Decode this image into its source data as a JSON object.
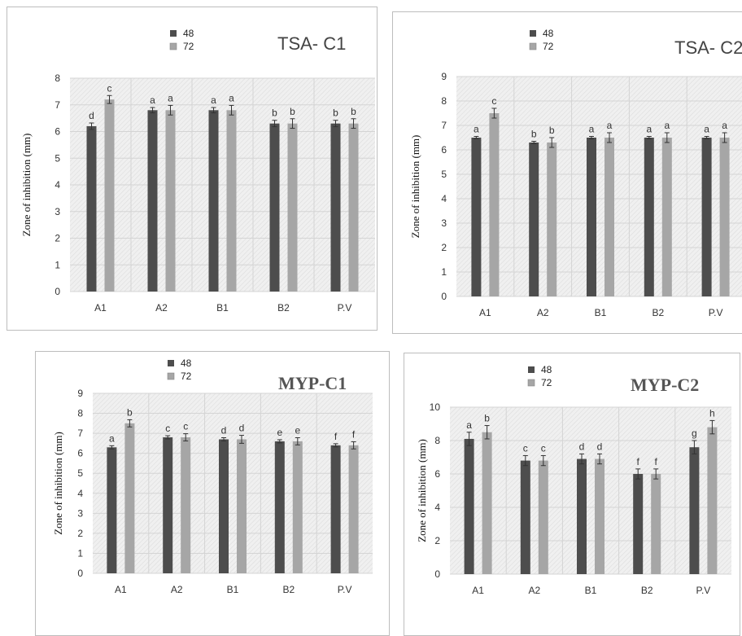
{
  "colors": {
    "series_48": "#4d4d4d",
    "series_72": "#a6a6a6",
    "plot_bg": "#f0f0f0",
    "grid": "#d4d4d4"
  },
  "chart_data": [
    {
      "type": "bar",
      "title": "TSA- C1",
      "ylabel": "Zone of inhibition (mm)",
      "categories": [
        "A1",
        "A2",
        "B1",
        "B2",
        "P.V"
      ],
      "ylim": [
        0,
        8
      ],
      "yticks": [
        "0",
        "1",
        "2",
        "3",
        "4",
        "5",
        "6",
        "7",
        "8"
      ],
      "grid": true,
      "legend": "top-center",
      "series": [
        {
          "name": "48",
          "values": [
            6.2,
            6.8,
            6.8,
            6.3,
            6.3
          ],
          "errors": [
            0.12,
            0.1,
            0.1,
            0.12,
            0.12
          ],
          "labels": [
            "d",
            "a",
            "a",
            "b",
            "b"
          ]
        },
        {
          "name": "72",
          "values": [
            7.2,
            6.8,
            6.8,
            6.3,
            6.3
          ],
          "errors": [
            0.15,
            0.18,
            0.18,
            0.18,
            0.18
          ],
          "labels": [
            "c",
            "a",
            "a",
            "b",
            "b"
          ]
        }
      ]
    },
    {
      "type": "bar",
      "title": "TSA- C2",
      "ylabel": "Zone of inhibition (mm)",
      "categories": [
        "A1",
        "A2",
        "B1",
        "B2",
        "P.V"
      ],
      "ylim": [
        0,
        9
      ],
      "yticks": [
        "0",
        "1",
        "2",
        "3",
        "4",
        "5",
        "6",
        "7",
        "8",
        "9"
      ],
      "grid": true,
      "legend": "top-center",
      "series": [
        {
          "name": "48",
          "values": [
            6.5,
            6.3,
            6.5,
            6.5,
            6.5
          ],
          "errors": [
            0.05,
            0.05,
            0.05,
            0.05,
            0.05
          ],
          "labels": [
            "a",
            "b",
            "a",
            "a",
            "a"
          ]
        },
        {
          "name": "72",
          "values": [
            7.5,
            6.3,
            6.5,
            6.5,
            6.5
          ],
          "errors": [
            0.2,
            0.2,
            0.2,
            0.2,
            0.2
          ],
          "labels": [
            "c",
            "b",
            "a",
            "a",
            "a"
          ]
        }
      ]
    },
    {
      "type": "bar",
      "title": "MYP-C1",
      "ylabel": "Zone of inhibition (mm)",
      "categories": [
        "A1",
        "A2",
        "B1",
        "B2",
        "P.V"
      ],
      "ylim": [
        0,
        9
      ],
      "yticks": [
        "0",
        "1",
        "2",
        "3",
        "4",
        "5",
        "6",
        "7",
        "8",
        "9"
      ],
      "grid": true,
      "legend": "top-center",
      "series": [
        {
          "name": "48",
          "values": [
            6.3,
            6.8,
            6.7,
            6.6,
            6.4
          ],
          "errors": [
            0.08,
            0.08,
            0.08,
            0.08,
            0.08
          ],
          "labels": [
            "a",
            "c",
            "d",
            "e",
            "f"
          ]
        },
        {
          "name": "72",
          "values": [
            7.5,
            6.8,
            6.7,
            6.6,
            6.4
          ],
          "errors": [
            0.18,
            0.18,
            0.2,
            0.18,
            0.18
          ],
          "labels": [
            "b",
            "c",
            "d",
            "e",
            "f"
          ]
        }
      ]
    },
    {
      "type": "bar",
      "title": "MYP-C2",
      "ylabel": "Zone of inhibition (mm)",
      "categories": [
        "A1",
        "A2",
        "B1",
        "B2",
        "P.V"
      ],
      "ylim": [
        0,
        10
      ],
      "yticks": [
        "0",
        "2",
        "4",
        "6",
        "8",
        "10"
      ],
      "grid": true,
      "legend": "top-center",
      "series": [
        {
          "name": "48",
          "values": [
            8.1,
            6.8,
            6.9,
            6.0,
            7.6
          ],
          "errors": [
            0.4,
            0.3,
            0.3,
            0.3,
            0.4
          ],
          "labels": [
            "a",
            "c",
            "d",
            "f",
            "g"
          ]
        },
        {
          "name": "72",
          "values": [
            8.5,
            6.8,
            6.9,
            6.0,
            8.8
          ],
          "errors": [
            0.4,
            0.3,
            0.3,
            0.3,
            0.4
          ],
          "labels": [
            "b",
            "c",
            "d",
            "f",
            "h"
          ]
        }
      ]
    }
  ]
}
